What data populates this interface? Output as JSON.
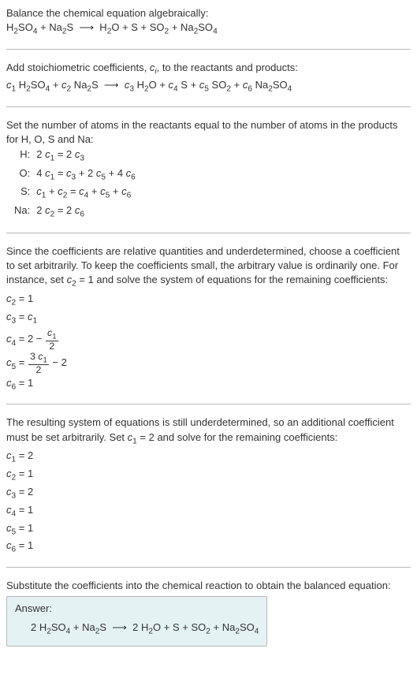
{
  "intro": {
    "line1": "Balance the chemical equation algebraically:",
    "eq_lhs": "H₂SO₄ + Na₂S",
    "arrow": "⟶",
    "eq_rhs": "H₂O + S + SO₂ + Na₂SO₄"
  },
  "stoich": {
    "text": "Add stoichiometric coefficients, ",
    "var": "c",
    "var_sub": "i",
    "text2": ", to the reactants and products:",
    "eq": "c₁ H₂SO₄ + c₂ Na₂S  ⟶  c₃ H₂O + c₄ S + c₅ SO₂ + c₆ Na₂SO₄"
  },
  "atoms": {
    "intro": "Set the number of atoms in the reactants equal to the number of atoms in the products for H, O, S and Na:",
    "rows": [
      {
        "elem": "H:",
        "eq": "2 c₁ = 2 c₃"
      },
      {
        "elem": "O:",
        "eq": "4 c₁ = c₃ + 2 c₅ + 4 c₆"
      },
      {
        "elem": "S:",
        "eq": "c₁ + c₂ = c₄ + c₅ + c₆"
      },
      {
        "elem": "Na:",
        "eq": "2 c₂ = 2 c₆"
      }
    ]
  },
  "underdet1": {
    "text": "Since the coefficients are relative quantities and underdetermined, choose a coefficient to set arbitrarily. To keep the coefficients small, the arbitrary value is ordinarily one. For instance, set c₂ = 1 and solve the system of equations for the remaining coefficients:",
    "lines": {
      "l1": "c₂ = 1",
      "l2": "c₃ = c₁",
      "l3_pre": "c₄ = 2 − ",
      "l3_num": "c₁",
      "l3_den": "2",
      "l4_pre": "c₅ = ",
      "l4_num": "3 c₁",
      "l4_den": "2",
      "l4_post": " − 2",
      "l5": "c₆ = 1"
    }
  },
  "underdet2": {
    "text": "The resulting system of equations is still underdetermined, so an additional coefficient must be set arbitrarily. Set c₁ = 2 and solve for the remaining coefficients:",
    "lines": [
      "c₁ = 2",
      "c₂ = 1",
      "c₃ = 2",
      "c₄ = 1",
      "c₅ = 1",
      "c₆ = 1"
    ]
  },
  "final": {
    "text": "Substitute the coefficients into the chemical reaction to obtain the balanced equation:",
    "answer_label": "Answer:",
    "answer_eq": "2 H₂SO₄ + Na₂S  ⟶  2 H₂O + S + SO₂ + Na₂SO₄"
  }
}
